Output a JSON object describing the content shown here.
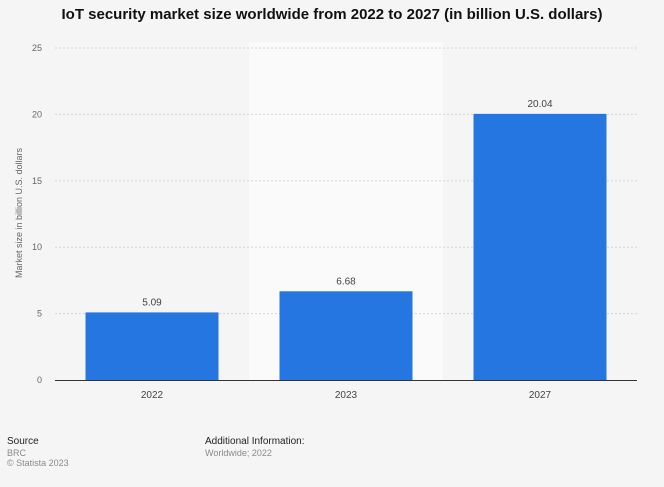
{
  "chart_data": {
    "type": "bar",
    "title": "IoT security market size worldwide from 2022 to 2027 (in billion U.S. dollars)",
    "xlabel": "",
    "ylabel": "Market size in billion U.S. dollars",
    "categories": [
      "2022",
      "2023",
      "2027"
    ],
    "values": [
      5.09,
      6.68,
      20.04
    ],
    "data_labels": [
      "5.09",
      "6.68",
      "20.04"
    ],
    "ylim": [
      0,
      25
    ],
    "yticks": [
      0,
      5,
      10,
      15,
      20,
      25
    ],
    "grid": true,
    "highlighted_category": "2023",
    "bar_color": "#2576e0"
  },
  "footer": {
    "source_heading": "Source",
    "source_name": "BRC",
    "copyright": "© Statista 2023",
    "info_heading": "Additional Information:",
    "info_text": "Worldwide; 2022"
  }
}
